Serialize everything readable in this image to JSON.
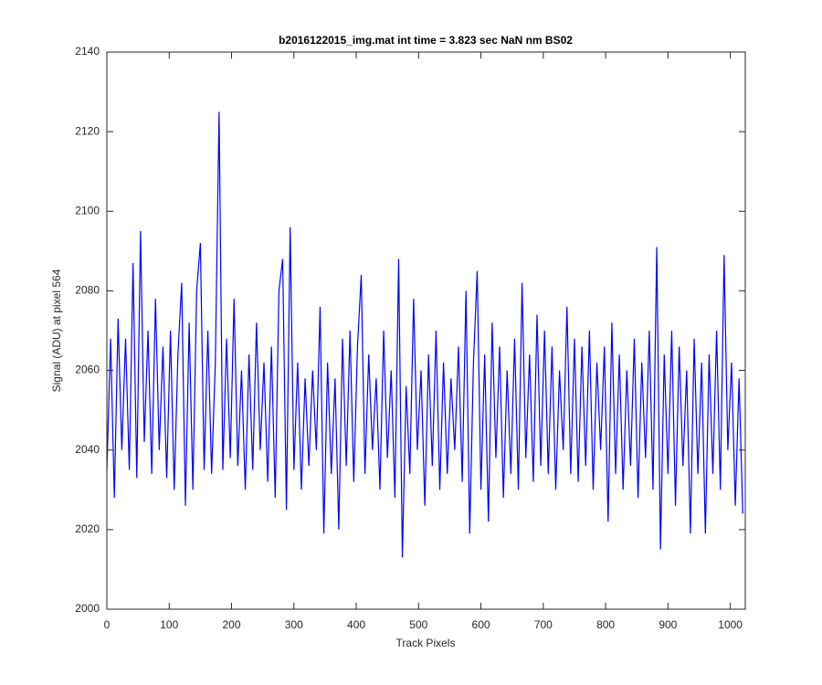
{
  "chart_data": {
    "type": "line",
    "title": "b2016122015_img.mat int time = 3.823 sec  NaN nm BS02",
    "xlabel": "Track Pixels",
    "ylabel": "Signal (ADU) at pixel 564",
    "xlim": [
      0,
      1024
    ],
    "xticks": [
      0,
      100,
      200,
      300,
      400,
      500,
      600,
      700,
      800,
      900,
      1000
    ],
    "ylim": [
      2000,
      2140
    ],
    "yticks": [
      2000,
      2020,
      2040,
      2060,
      2080,
      2100,
      2120,
      2140
    ],
    "grid": false,
    "x": [
      0,
      6,
      12,
      18,
      24,
      30,
      36,
      42,
      48,
      54,
      60,
      66,
      72,
      78,
      84,
      90,
      96,
      102,
      108,
      114,
      120,
      126,
      132,
      138,
      144,
      150,
      156,
      162,
      168,
      174,
      180,
      186,
      192,
      198,
      204,
      210,
      216,
      222,
      228,
      234,
      240,
      246,
      252,
      258,
      264,
      270,
      276,
      282,
      288,
      294,
      300,
      306,
      312,
      318,
      324,
      330,
      336,
      342,
      348,
      354,
      360,
      366,
      372,
      378,
      384,
      390,
      396,
      402,
      408,
      414,
      420,
      426,
      432,
      438,
      444,
      450,
      456,
      462,
      468,
      474,
      480,
      486,
      492,
      498,
      504,
      510,
      516,
      522,
      528,
      534,
      540,
      546,
      552,
      558,
      564,
      570,
      576,
      582,
      588,
      594,
      600,
      606,
      612,
      618,
      624,
      630,
      636,
      642,
      648,
      654,
      660,
      666,
      672,
      678,
      684,
      690,
      696,
      702,
      708,
      714,
      720,
      726,
      732,
      738,
      744,
      750,
      756,
      762,
      768,
      774,
      780,
      786,
      792,
      798,
      804,
      810,
      816,
      822,
      828,
      834,
      840,
      846,
      852,
      858,
      864,
      870,
      876,
      882,
      888,
      894,
      900,
      906,
      912,
      918,
      924,
      930,
      936,
      942,
      948,
      954,
      960,
      966,
      972,
      978,
      984,
      990,
      996,
      1002,
      1008,
      1014,
      1020
    ],
    "series": [
      {
        "color": "#0000ff",
        "values": [
          2035,
          2068,
          2028,
          2073,
          2040,
          2068,
          2035,
          2087,
          2033,
          2095,
          2042,
          2070,
          2034,
          2078,
          2040,
          2066,
          2033,
          2070,
          2030,
          2064,
          2082,
          2026,
          2072,
          2030,
          2080,
          2092,
          2035,
          2070,
          2034,
          2062,
          2125,
          2035,
          2068,
          2038,
          2078,
          2036,
          2060,
          2030,
          2064,
          2035,
          2072,
          2040,
          2062,
          2032,
          2066,
          2028,
          2080,
          2088,
          2025,
          2096,
          2035,
          2062,
          2030,
          2058,
          2036,
          2060,
          2040,
          2076,
          2019,
          2062,
          2034,
          2058,
          2020,
          2068,
          2036,
          2070,
          2032,
          2066,
          2084,
          2034,
          2064,
          2040,
          2058,
          2030,
          2070,
          2038,
          2060,
          2028,
          2088,
          2013,
          2056,
          2034,
          2078,
          2040,
          2060,
          2026,
          2064,
          2036,
          2070,
          2030,
          2062,
          2034,
          2058,
          2040,
          2066,
          2032,
          2080,
          2019,
          2062,
          2085,
          2030,
          2064,
          2022,
          2072,
          2038,
          2066,
          2028,
          2060,
          2034,
          2068,
          2030,
          2082,
          2038,
          2064,
          2032,
          2074,
          2036,
          2070,
          2034,
          2066,
          2030,
          2060,
          2040,
          2076,
          2034,
          2068,
          2032,
          2066,
          2036,
          2070,
          2030,
          2062,
          2040,
          2066,
          2022,
          2072,
          2034,
          2064,
          2030,
          2060,
          2036,
          2068,
          2028,
          2062,
          2038,
          2070,
          2030,
          2091,
          2015,
          2064,
          2034,
          2070,
          2026,
          2066,
          2036,
          2060,
          2019,
          2068,
          2034,
          2062,
          2019,
          2064,
          2034,
          2070,
          2030,
          2089,
          2040,
          2062,
          2026,
          2058,
          2024
        ]
      }
    ]
  }
}
